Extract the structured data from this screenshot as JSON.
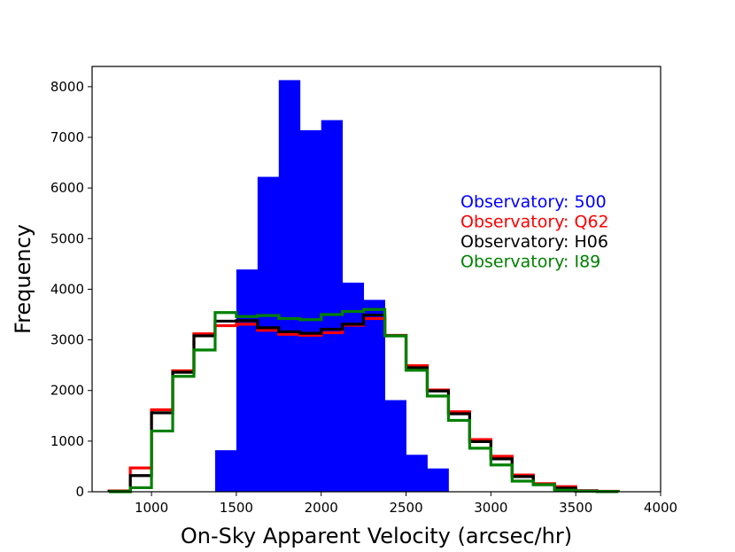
{
  "chart_data": {
    "type": "histogram",
    "xlabel": "On-Sky Apparent Velocity (arcsec/hr)",
    "ylabel": "Frequency",
    "xlim": [
      650,
      4000
    ],
    "ylim": [
      0,
      8400
    ],
    "xticks": [
      1000,
      1500,
      2000,
      2500,
      3000,
      3500,
      4000
    ],
    "yticks": [
      0,
      1000,
      2000,
      3000,
      4000,
      5000,
      6000,
      7000,
      8000
    ],
    "legend_position": "right",
    "series": [
      {
        "name": "Observatory: 500",
        "label": "Observatory: 500",
        "color": "#0000ff",
        "style": "filled",
        "bins": [
          1375,
          1500,
          1625,
          1750,
          1875,
          2000,
          2125,
          2250,
          2375,
          2500,
          2625,
          2750
        ],
        "values": [
          820,
          4390,
          6220,
          8130,
          7140,
          7340,
          4130,
          3790,
          1810,
          730,
          460
        ]
      },
      {
        "name": "Observatory: Q62",
        "label": "Observatory: Q62",
        "color": "#ff0000",
        "style": "step",
        "bins": [
          750,
          875,
          1000,
          1125,
          1250,
          1375,
          1500,
          1625,
          1750,
          1875,
          2000,
          2125,
          2250,
          2375,
          2500,
          2625,
          2750,
          2875,
          3000,
          3125,
          3250,
          3375,
          3500,
          3625,
          3750
        ],
        "values": [
          15,
          470,
          1620,
          2390,
          3120,
          3280,
          3310,
          3190,
          3110,
          3090,
          3140,
          3290,
          3420,
          3090,
          2490,
          2010,
          1580,
          1030,
          700,
          330,
          160,
          100,
          20,
          10
        ]
      },
      {
        "name": "Observatory: H06",
        "label": "Observatory: H06",
        "color": "#000000",
        "style": "step",
        "bins": [
          750,
          875,
          1000,
          1125,
          1250,
          1375,
          1500,
          1625,
          1750,
          1875,
          2000,
          2125,
          2250,
          2375,
          2500,
          2625,
          2750,
          2875,
          3000,
          3125,
          3250,
          3375,
          3500,
          3625,
          3750
        ],
        "values": [
          10,
          320,
          1560,
          2360,
          3080,
          3370,
          3380,
          3240,
          3160,
          3130,
          3210,
          3310,
          3490,
          3080,
          2450,
          1990,
          1540,
          990,
          650,
          300,
          140,
          70,
          15,
          5
        ]
      },
      {
        "name": "Observatory: I89",
        "label": "Observatory: I89",
        "color": "#008000",
        "style": "step",
        "bins": [
          750,
          875,
          1000,
          1125,
          1250,
          1375,
          1500,
          1625,
          1750,
          1875,
          2000,
          2125,
          2250,
          2375,
          2500,
          2625,
          2750,
          2875,
          3000,
          3125,
          3250,
          3375,
          3500,
          3625,
          3750
        ],
        "values": [
          0,
          80,
          1200,
          2280,
          2800,
          3540,
          3460,
          3480,
          3420,
          3400,
          3500,
          3560,
          3600,
          3080,
          2400,
          1890,
          1410,
          860,
          530,
          210,
          140,
          30,
          10,
          5
        ]
      }
    ]
  }
}
